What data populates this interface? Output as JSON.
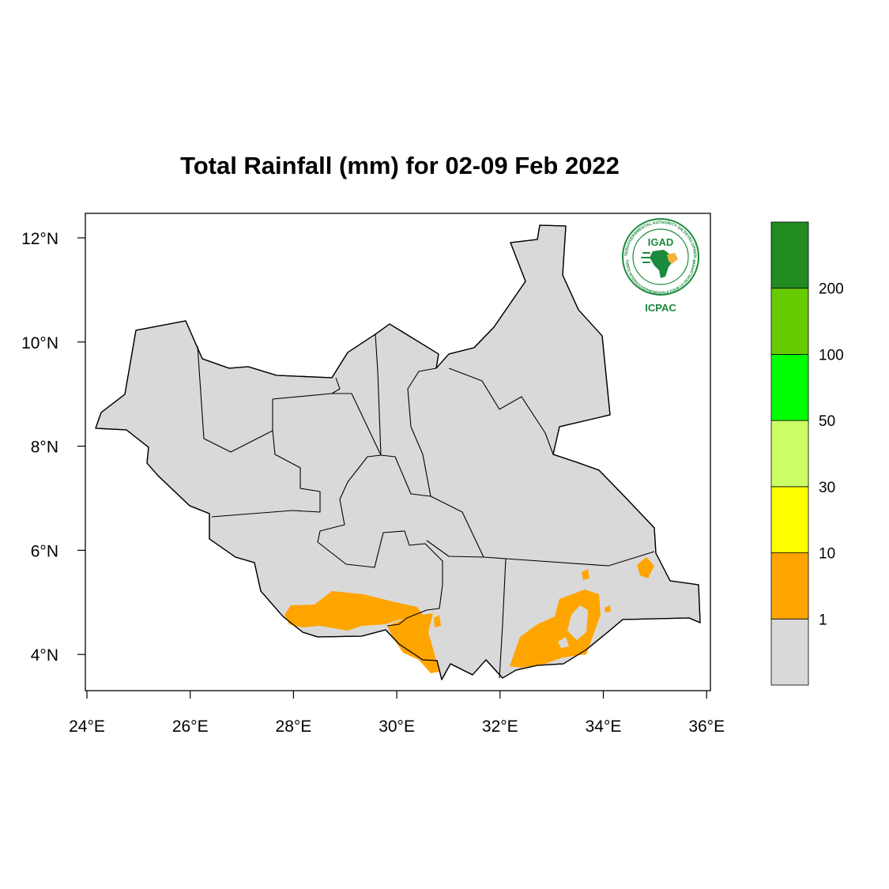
{
  "title": "Total Rainfall (mm) for 02-09 Feb 2022",
  "map": {
    "region": "South Sudan",
    "lon_ticks": [
      "24°E",
      "26°E",
      "28°E",
      "30°E",
      "32°E",
      "34°E",
      "36°E"
    ],
    "lat_ticks": [
      "12°N",
      "10°N",
      "8°N",
      "6°N",
      "4°N"
    ],
    "base_color": "#d9d9d9",
    "rain_color": "#ffa500",
    "boundary_color": "#000000"
  },
  "legend": {
    "bins": [
      {
        "color": "#d9d9d9"
      },
      {
        "color": "#ffa500"
      },
      {
        "color": "#ffff00"
      },
      {
        "color": "#ccff66"
      },
      {
        "color": "#00ff00"
      },
      {
        "color": "#66cc00"
      },
      {
        "color": "#228b22"
      }
    ],
    "labels": [
      "1",
      "10",
      "30",
      "50",
      "100",
      "200"
    ]
  },
  "logo": {
    "name": "IGAD",
    "org": "ICPAC",
    "ring_top": "INTERGOVERNMENTAL AUTHORITY ON DEVELOPMENT",
    "ring_bottom": "AUTORITE INTERGOUVERNEMENTALE POUR LE DEVELOPPEMENT",
    "color": "#1a8a3c",
    "accent": "#f2b33d"
  }
}
